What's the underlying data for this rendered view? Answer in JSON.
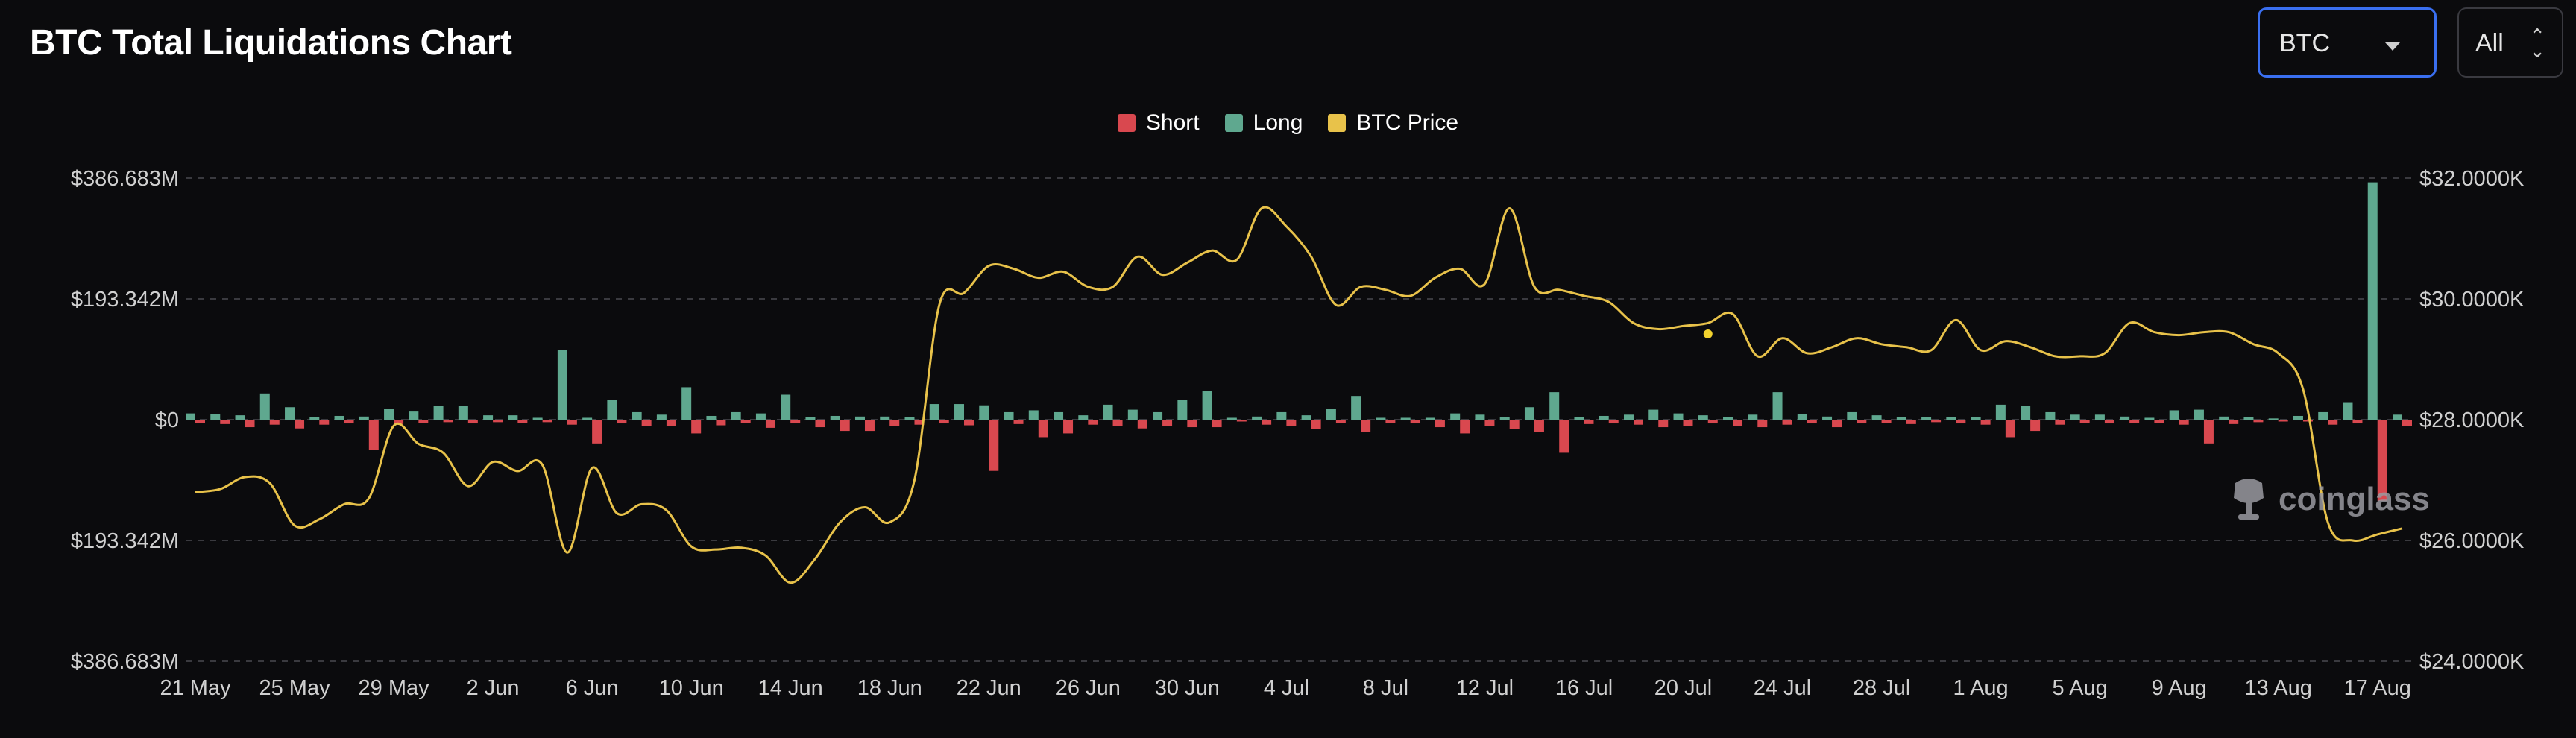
{
  "header": {
    "title": "BTC Total Liquidations Chart",
    "coin_select": "BTC",
    "range_select": "All"
  },
  "watermark": "coinglass",
  "colors": {
    "short": "#d9484f",
    "long": "#5fa88f",
    "price": "#e8c24a",
    "grid": "#3a3a3f",
    "background": "#0b0b0d"
  },
  "chart_data": {
    "type": "bar",
    "legend": [
      "Short",
      "Long",
      "BTC Price"
    ],
    "legend_position": "top-center",
    "grid": true,
    "x_tick_labels": [
      "21 May",
      "25 May",
      "29 May",
      "2 Jun",
      "6 Jun",
      "10 Jun",
      "14 Jun",
      "18 Jun",
      "22 Jun",
      "26 Jun",
      "30 Jun",
      "4 Jul",
      "8 Jul",
      "12 Jul",
      "16 Jul",
      "20 Jul",
      "24 Jul",
      "28 Jul",
      "1 Aug",
      "5 Aug",
      "9 Aug",
      "13 Aug",
      "17 Aug"
    ],
    "y_left_tick_labels": [
      "$386.683M",
      "$193.342M",
      "$0",
      "$193.342M",
      "$386.683M"
    ],
    "y_left_range": [
      -386.683,
      386.683
    ],
    "y_left_unit": "M USD",
    "y_right_tick_labels": [
      "$32.0000K",
      "$30.0000K",
      "$28.0000K",
      "$26.0000K",
      "$24.0000K"
    ],
    "y_right_range": [
      24000,
      32000
    ],
    "day_count": 90,
    "series": [
      {
        "name": "Long",
        "values": [
          10,
          9,
          7,
          42,
          20,
          4,
          6,
          5,
          17,
          13,
          22,
          22,
          7,
          7,
          3,
          112,
          3,
          32,
          12,
          8,
          52,
          6,
          12,
          10,
          40,
          4,
          6,
          5,
          5,
          4,
          25,
          25,
          23,
          12,
          15,
          12,
          7,
          24,
          16,
          12,
          32,
          46,
          3,
          5,
          12,
          7,
          17,
          38,
          3,
          3,
          3,
          10,
          8,
          4,
          20,
          44,
          4,
          6,
          8,
          16,
          10,
          7,
          4,
          8,
          44,
          9,
          5,
          12,
          7,
          4,
          4,
          4,
          4,
          24,
          22,
          12,
          8,
          8,
          5,
          3,
          15,
          16,
          5,
          4,
          2,
          6,
          12,
          28,
          380,
          8
        ]
      },
      {
        "name": "Short",
        "values": [
          5,
          7,
          12,
          8,
          14,
          8,
          6,
          48,
          7,
          5,
          4,
          6,
          4,
          5,
          4,
          8,
          38,
          6,
          10,
          10,
          22,
          9,
          5,
          13,
          6,
          12,
          18,
          18,
          10,
          8,
          6,
          9,
          82,
          7,
          28,
          22,
          8,
          10,
          14,
          10,
          12,
          12,
          3,
          8,
          10,
          15,
          5,
          20,
          5,
          6,
          12,
          22,
          10,
          15,
          20,
          53,
          7,
          6,
          8,
          12,
          10,
          6,
          10,
          12,
          8,
          6,
          12,
          6,
          5,
          7,
          4,
          6,
          8,
          28,
          18,
          8,
          5,
          6,
          5,
          5,
          8,
          38,
          7,
          4,
          3,
          3,
          8,
          6,
          130,
          10
        ]
      },
      {
        "name": "BTC Price",
        "values": [
          26800,
          26850,
          27050,
          26950,
          26250,
          26350,
          26600,
          26700,
          27900,
          27600,
          27450,
          26900,
          27300,
          27150,
          27250,
          25800,
          27200,
          26450,
          26600,
          26500,
          25900,
          25850,
          25880,
          25750,
          25300,
          25700,
          26300,
          26550,
          26300,
          27000,
          29900,
          30100,
          30550,
          30500,
          30350,
          30450,
          30200,
          30200,
          30700,
          30400,
          30600,
          30800,
          30650,
          31500,
          31200,
          30700,
          29900,
          30200,
          30150,
          30050,
          30350,
          30500,
          30250,
          31500,
          30200,
          30150,
          30050,
          29950,
          29600,
          29500,
          29550,
          29600,
          29750,
          29050,
          29350,
          29100,
          29200,
          29350,
          29250,
          29200,
          29150,
          29650,
          29150,
          29300,
          29200,
          29050,
          29050,
          29100,
          29600,
          29450,
          29400,
          29450,
          29450,
          29250,
          29100,
          28500,
          26300,
          26000,
          26100,
          26200
        ]
      }
    ],
    "annotations": [
      {
        "type": "point",
        "series": "BTC Price",
        "x_day": 61,
        "y": 29420
      }
    ]
  }
}
